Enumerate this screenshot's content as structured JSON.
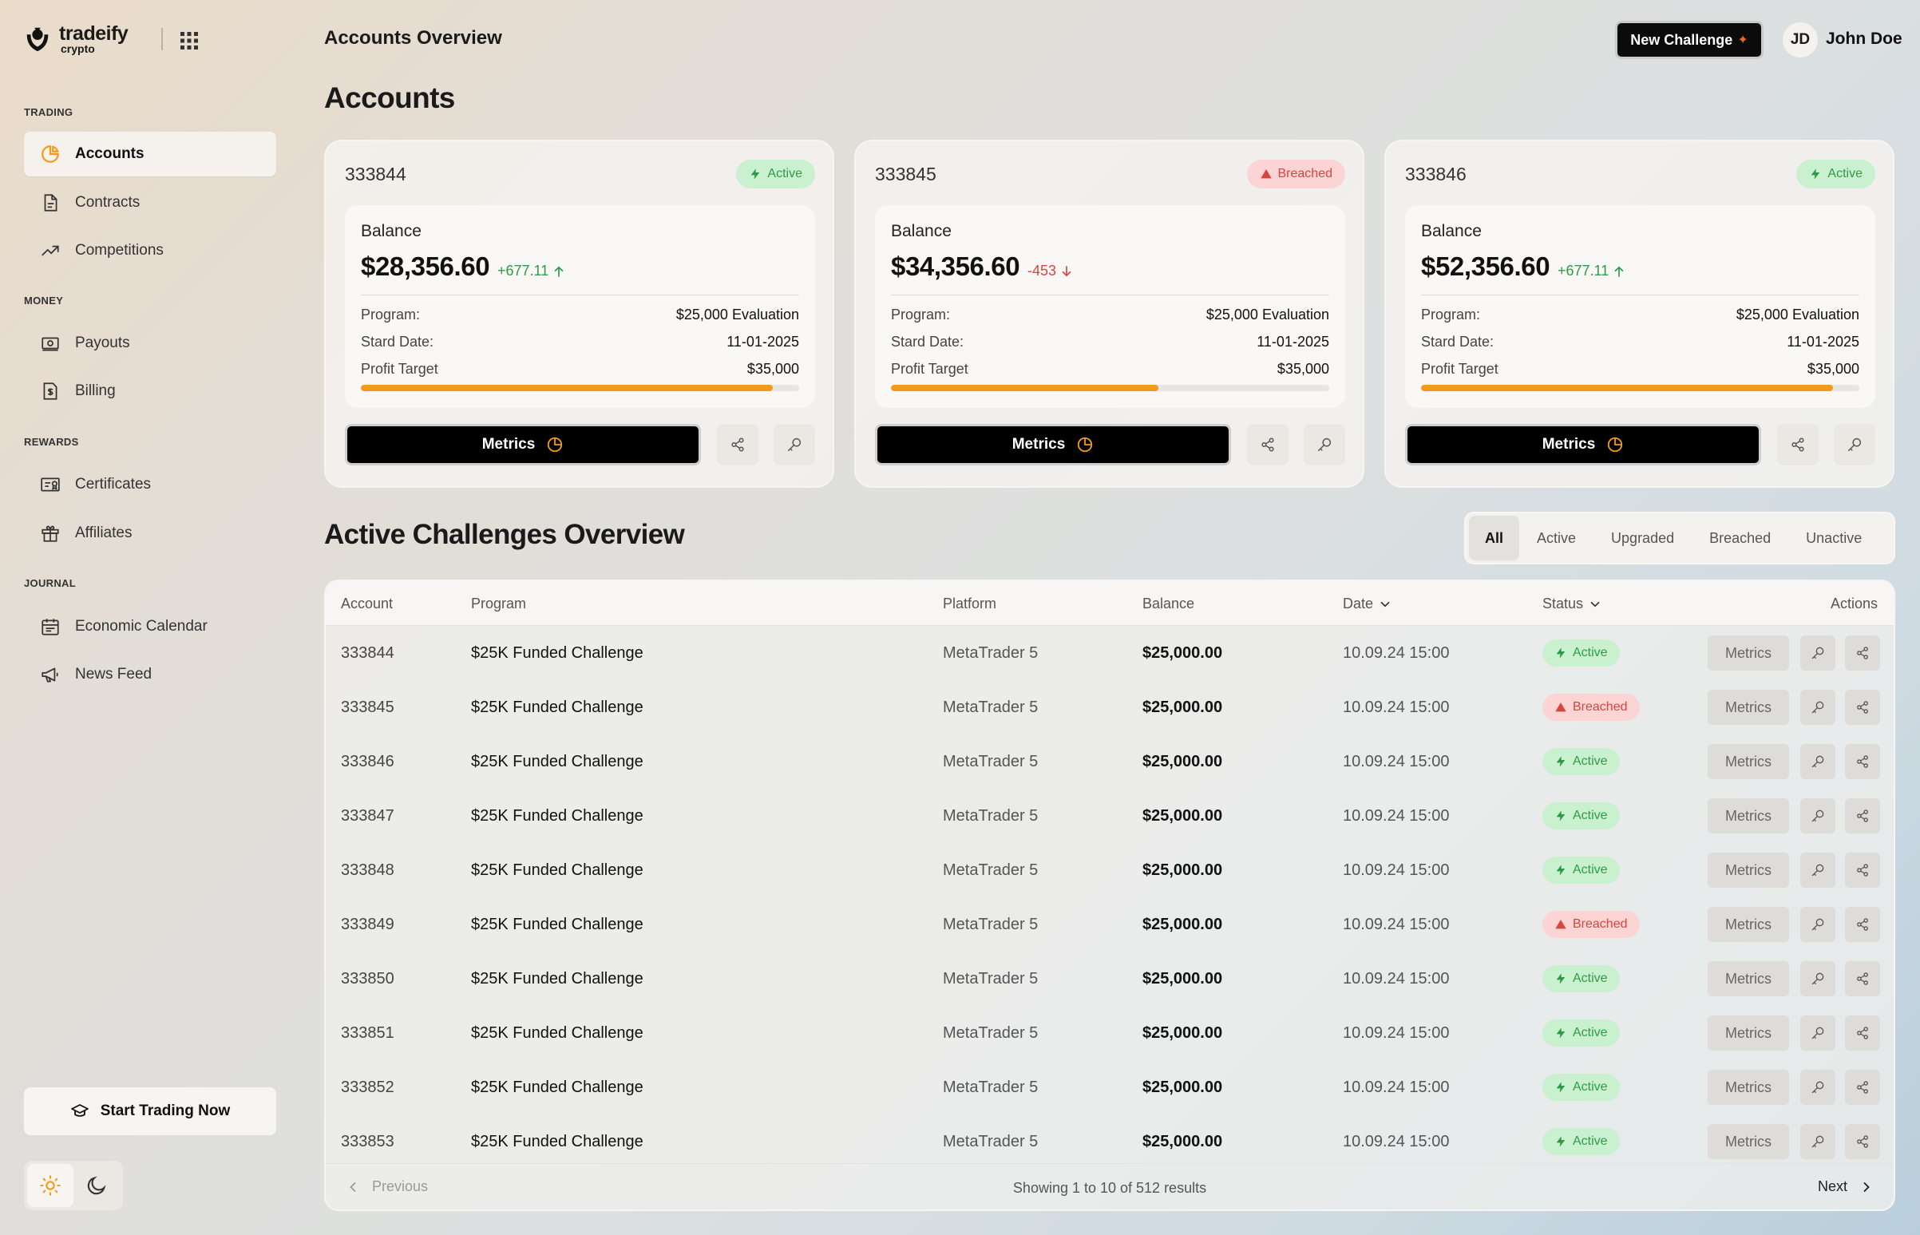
{
  "brand": {
    "name": "tradeify",
    "sub": "crypto"
  },
  "sidebar": {
    "sections": [
      {
        "label": "TRADING"
      },
      {
        "label": "MONEY"
      },
      {
        "label": "REWARDS"
      },
      {
        "label": "JOURNAL"
      }
    ],
    "items": [
      {
        "label": "Accounts",
        "icon": "pie-chart-icon",
        "active": true
      },
      {
        "label": "Contracts",
        "icon": "document-icon"
      },
      {
        "label": "Competitions",
        "icon": "trending-up-icon"
      },
      {
        "label": "Payouts",
        "icon": "cash-icon"
      },
      {
        "label": "Billing",
        "icon": "invoice-icon"
      },
      {
        "label": "Certificates",
        "icon": "certificate-icon"
      },
      {
        "label": "Affiliates",
        "icon": "gift-icon"
      },
      {
        "label": "Economic Calendar",
        "icon": "calendar-icon"
      },
      {
        "label": "News Feed",
        "icon": "megaphone-icon"
      }
    ],
    "start_trading": "Start Trading Now"
  },
  "header": {
    "title": "Accounts Overview",
    "new_challenge": "New Challenge",
    "user_initials": "JD",
    "user_name": "John Doe"
  },
  "accounts_heading": "Accounts",
  "account_cards": [
    {
      "id": "333844",
      "status": "Active",
      "status_type": "active",
      "balance_label": "Balance",
      "balance": "$28,356.60",
      "change": "+677.11",
      "direction": "up",
      "program_label": "Program:",
      "program": "$25,000 Evaluation",
      "start_label": "Stard Date:",
      "start_date": "11-01-2025",
      "target_label": "Profit Target",
      "target": "$35,000",
      "progress": 0.94,
      "metrics_label": "Metrics"
    },
    {
      "id": "333845",
      "status": "Breached",
      "status_type": "breached",
      "balance_label": "Balance",
      "balance": "$34,356.60",
      "change": "-453",
      "direction": "down",
      "program_label": "Program:",
      "program": "$25,000 Evaluation",
      "start_label": "Stard Date:",
      "start_date": "11-01-2025",
      "target_label": "Profit Target",
      "target": "$35,000",
      "progress": 0.61,
      "metrics_label": "Metrics"
    },
    {
      "id": "333846",
      "status": "Active",
      "status_type": "active",
      "balance_label": "Balance",
      "balance": "$52,356.60",
      "change": "+677.11",
      "direction": "up",
      "program_label": "Program:",
      "program": "$25,000 Evaluation",
      "start_label": "Stard Date:",
      "start_date": "11-01-2025",
      "target_label": "Profit Target",
      "target": "$35,000",
      "progress": 0.94,
      "metrics_label": "Metrics"
    }
  ],
  "challenges_heading": "Active Challenges Overview",
  "filters": [
    "All",
    "Active",
    "Upgraded",
    "Breached",
    "Unactive"
  ],
  "selected_filter": "All",
  "table": {
    "columns": [
      "Account",
      "Program",
      "Platform",
      "Balance",
      "Date",
      "Status",
      "Actions"
    ],
    "metrics_label": "Metrics",
    "rows": [
      {
        "account": "333844",
        "program": "$25K Funded Challenge",
        "platform": "MetaTrader 5",
        "balance": "$25,000.00",
        "date": "10.09.24  15:00",
        "status": "Active",
        "status_type": "active"
      },
      {
        "account": "333845",
        "program": "$25K Funded Challenge",
        "platform": "MetaTrader 5",
        "balance": "$25,000.00",
        "date": "10.09.24  15:00",
        "status": "Breached",
        "status_type": "breached"
      },
      {
        "account": "333846",
        "program": "$25K Funded Challenge",
        "platform": "MetaTrader 5",
        "balance": "$25,000.00",
        "date": "10.09.24  15:00",
        "status": "Active",
        "status_type": "active"
      },
      {
        "account": "333847",
        "program": "$25K Funded Challenge",
        "platform": "MetaTrader 5",
        "balance": "$25,000.00",
        "date": "10.09.24  15:00",
        "status": "Active",
        "status_type": "active"
      },
      {
        "account": "333848",
        "program": "$25K Funded Challenge",
        "platform": "MetaTrader 5",
        "balance": "$25,000.00",
        "date": "10.09.24  15:00",
        "status": "Active",
        "status_type": "active"
      },
      {
        "account": "333849",
        "program": "$25K Funded Challenge",
        "platform": "MetaTrader 5",
        "balance": "$25,000.00",
        "date": "10.09.24  15:00",
        "status": "Breached",
        "status_type": "breached"
      },
      {
        "account": "333850",
        "program": "$25K Funded Challenge",
        "platform": "MetaTrader 5",
        "balance": "$25,000.00",
        "date": "10.09.24  15:00",
        "status": "Active",
        "status_type": "active"
      },
      {
        "account": "333851",
        "program": "$25K Funded Challenge",
        "platform": "MetaTrader 5",
        "balance": "$25,000.00",
        "date": "10.09.24  15:00",
        "status": "Active",
        "status_type": "active"
      },
      {
        "account": "333852",
        "program": "$25K Funded Challenge",
        "platform": "MetaTrader 5",
        "balance": "$25,000.00",
        "date": "10.09.24  15:00",
        "status": "Active",
        "status_type": "active"
      },
      {
        "account": "333853",
        "program": "$25K Funded Challenge",
        "platform": "MetaTrader 5",
        "balance": "$25,000.00",
        "date": "10.09.24  15:00",
        "status": "Active",
        "status_type": "active"
      }
    ],
    "prev_label": "Previous",
    "next_label": "Next",
    "showing": "Showing 1 to 10 of 512 results"
  },
  "colors": {
    "accent": "#f39a1a",
    "active_bg": "#c9f0cf",
    "active_fg": "#2f9a47",
    "breached_bg": "#fbd4d3",
    "breached_fg": "#d8443e",
    "primary_button": "#000000"
  }
}
